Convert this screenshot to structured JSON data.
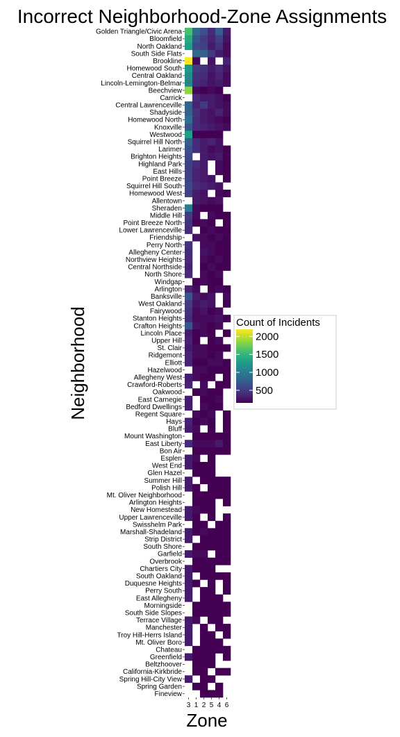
{
  "chart_data": {
    "type": "heatmap",
    "title": "Incorrect Neighborhood-Zone Assignments",
    "xlabel": "Zone",
    "ylabel": "Neighborhood",
    "x_categories": [
      "3",
      "1",
      "2",
      "5",
      "4",
      "6"
    ],
    "y_categories": [
      "Golden Triangle/Civic Arena",
      "Bloomfield",
      "North Oakland",
      "South Side Flats",
      "Brookline",
      "Homewood South",
      "Central Oakland",
      "Lincoln-Lemington-Belmar",
      "Beechview",
      "Carrick",
      "Central Lawrenceville",
      "Shadyside",
      "Homewood North",
      "Knoxville",
      "Westwood",
      "Squirrel Hill North",
      "Larimer",
      "Brighton Heights",
      "Highland Park",
      "East Hills",
      "Point Breeze",
      "Squirrel Hill South",
      "Homewood West",
      "Allentown",
      "Sheraden",
      "Middle Hill",
      "Point Breeze North",
      "Lower Lawrenceville",
      "Friendship",
      "Perry North",
      "Allegheny Center",
      "Northview Heights",
      "Central Northside",
      "North Shore",
      "Windgap",
      "Arlington",
      "Banksville",
      "West Oakland",
      "Fairywood",
      "Stanton Heights",
      "Crafton Heights",
      "Lincoln Place",
      "Upper Hill",
      "St. Clair",
      "Ridgemont",
      "Elliott",
      "Hazelwood",
      "Allegheny West",
      "Crawford-Roberts",
      "Oakwood",
      "East Carnegie",
      "Bedford Dwellings",
      "Regent Square",
      "Hays",
      "Bluff",
      "Mount Washington",
      "East Liberty",
      "Bon Air",
      "Esplen",
      "West End",
      "Glen Hazel",
      "Summer Hill",
      "Polish Hill",
      "Mt. Oliver Neighborhood",
      "Arlington Heights",
      "New Homestead",
      "Upper Lawrenceville",
      "Swisshelm Park",
      "Marshall-Shadeland",
      "Strip District",
      "South Shore",
      "Garfield",
      "Overbrook",
      "Chartiers City",
      "South Oakland",
      "Duquesne Heights",
      "Perry South",
      "East Allegheny",
      "Morningside",
      "South Side Slopes",
      "Terrace Village",
      "Manchester",
      "Troy Hill-Herrs Island",
      "Mt. Oliver Boro",
      "Chateau",
      "Greenfield",
      "Beltzhoover",
      "California-Kirkbride",
      "Spring Hill-City View",
      "Spring Garden",
      "Fineview"
    ],
    "values": [
      [
        1600,
        850,
        650,
        400,
        750,
        300
      ],
      [
        1400,
        700,
        500,
        350,
        550,
        250
      ],
      [
        1300,
        600,
        550,
        300,
        450,
        200
      ],
      [
        null,
        850,
        750,
        500,
        300,
        200
      ],
      [
        2200,
        180,
        null,
        250,
        null,
        350
      ],
      [
        1250,
        500,
        450,
        300,
        400,
        250
      ],
      [
        1150,
        450,
        400,
        250,
        350,
        200
      ],
      [
        1100,
        400,
        350,
        250,
        300,
        200
      ],
      [
        1850,
        200,
        150,
        200,
        150,
        null
      ],
      [
        null,
        400,
        300,
        300,
        250,
        150
      ],
      [
        800,
        350,
        500,
        300,
        250,
        200
      ],
      [
        800,
        450,
        300,
        250,
        350,
        200
      ],
      [
        900,
        400,
        300,
        250,
        200,
        150
      ],
      [
        700,
        400,
        350,
        300,
        250,
        200
      ],
      [
        1300,
        150,
        120,
        100,
        120,
        null
      ],
      [
        750,
        400,
        300,
        350,
        250,
        null
      ],
      [
        650,
        400,
        300,
        200,
        250,
        150
      ],
      [
        600,
        null,
        300,
        250,
        300,
        150
      ],
      [
        550,
        400,
        300,
        null,
        200,
        150
      ],
      [
        550,
        350,
        300,
        null,
        200,
        150
      ],
      [
        550,
        350,
        300,
        250,
        null,
        150
      ],
      [
        600,
        400,
        350,
        300,
        250,
        null
      ],
      [
        550,
        300,
        250,
        null,
        200,
        150
      ],
      [
        null,
        300,
        250,
        200,
        250,
        null
      ],
      [
        1000,
        200,
        150,
        150,
        150,
        null
      ],
      [
        500,
        200,
        null,
        200,
        150,
        150
      ],
      [
        450,
        150,
        200,
        150,
        null,
        150
      ],
      [
        400,
        null,
        150,
        200,
        150,
        150
      ],
      [
        null,
        250,
        200,
        150,
        200,
        150
      ],
      [
        450,
        null,
        200,
        200,
        150,
        150
      ],
      [
        400,
        null,
        250,
        200,
        150,
        150
      ],
      [
        400,
        null,
        200,
        150,
        200,
        150
      ],
      [
        350,
        null,
        150,
        200,
        150,
        150
      ],
      [
        400,
        null,
        200,
        150,
        200,
        null
      ],
      [
        null,
        150,
        200,
        150,
        150,
        null
      ],
      [
        350,
        200,
        null,
        150,
        200,
        150
      ],
      [
        700,
        300,
        200,
        250,
        null,
        200
      ],
      [
        500,
        250,
        300,
        250,
        null,
        150
      ],
      [
        450,
        200,
        250,
        150,
        200,
        null
      ],
      [
        400,
        200,
        200,
        200,
        250,
        150
      ],
      [
        700,
        250,
        200,
        150,
        200,
        null
      ],
      [
        300,
        150,
        200,
        150,
        null,
        150
      ],
      [
        350,
        150,
        null,
        150,
        200,
        null
      ],
      [
        300,
        200,
        200,
        150,
        150,
        150
      ],
      [
        350,
        200,
        200,
        150,
        200,
        null
      ],
      [
        350,
        150,
        150,
        200,
        200,
        150
      ],
      [
        null,
        200,
        200,
        150,
        150,
        150
      ],
      [
        300,
        200,
        150,
        150,
        null,
        150
      ],
      [
        350,
        null,
        200,
        null,
        150,
        150
      ],
      [
        null,
        150,
        200,
        150,
        150,
        null
      ],
      [
        300,
        null,
        150,
        150,
        200,
        null
      ],
      [
        300,
        null,
        200,
        150,
        150,
        null
      ],
      [
        null,
        200,
        150,
        200,
        null,
        150
      ],
      [
        350,
        150,
        200,
        150,
        null,
        150
      ],
      [
        300,
        200,
        null,
        150,
        null,
        150
      ],
      [
        null,
        150,
        150,
        150,
        150,
        150
      ],
      [
        400,
        200,
        200,
        200,
        300,
        150
      ],
      [
        null,
        150,
        150,
        150,
        150,
        150
      ],
      [
        300,
        200,
        null,
        150,
        null,
        null
      ],
      [
        300,
        150,
        150,
        150,
        null,
        null
      ],
      [
        null,
        150,
        150,
        150,
        null,
        null
      ],
      [
        300,
        null,
        150,
        150,
        150,
        150
      ],
      [
        300,
        150,
        null,
        150,
        150,
        150
      ],
      [
        null,
        150,
        150,
        150,
        150,
        150
      ],
      [
        null,
        150,
        150,
        150,
        null,
        150
      ],
      [
        300,
        200,
        150,
        150,
        null,
        null
      ],
      [
        300,
        150,
        null,
        150,
        null,
        150
      ],
      [
        null,
        150,
        150,
        null,
        150,
        150
      ],
      [
        300,
        150,
        200,
        150,
        150,
        150
      ],
      [
        300,
        null,
        150,
        150,
        150,
        150
      ],
      [
        null,
        150,
        150,
        150,
        150,
        150
      ],
      [
        300,
        200,
        200,
        null,
        150,
        150
      ],
      [
        null,
        150,
        150,
        150,
        150,
        150
      ],
      [
        300,
        150,
        150,
        150,
        null,
        null
      ],
      [
        300,
        null,
        150,
        150,
        150,
        150
      ],
      [
        300,
        150,
        null,
        150,
        null,
        150
      ],
      [
        300,
        null,
        150,
        150,
        null,
        150
      ],
      [
        300,
        null,
        150,
        150,
        150,
        null
      ],
      [
        null,
        150,
        150,
        150,
        150,
        150
      ],
      [
        null,
        150,
        150,
        150,
        150,
        150
      ],
      [
        300,
        200,
        null,
        150,
        150,
        null
      ],
      [
        300,
        null,
        150,
        null,
        150,
        150
      ],
      [
        300,
        null,
        150,
        150,
        null,
        150
      ],
      [
        300,
        null,
        150,
        150,
        150,
        null
      ],
      [
        null,
        150,
        150,
        150,
        150,
        150
      ],
      [
        300,
        150,
        150,
        150,
        null,
        150
      ],
      [
        null,
        150,
        150,
        150,
        null,
        null
      ],
      [
        null,
        150,
        150,
        null,
        150,
        150
      ],
      [
        300,
        null,
        150,
        150,
        null,
        null
      ],
      [
        null,
        150,
        150,
        null,
        150,
        null
      ],
      [
        null,
        null,
        150,
        150,
        150,
        null
      ]
    ],
    "colorscale": "viridis",
    "color_range": [
      150,
      2200
    ],
    "legend": {
      "title": "Count of Incidents",
      "ticks": [
        2000,
        1500,
        1000,
        500
      ],
      "placement": "right"
    },
    "grid": false
  }
}
